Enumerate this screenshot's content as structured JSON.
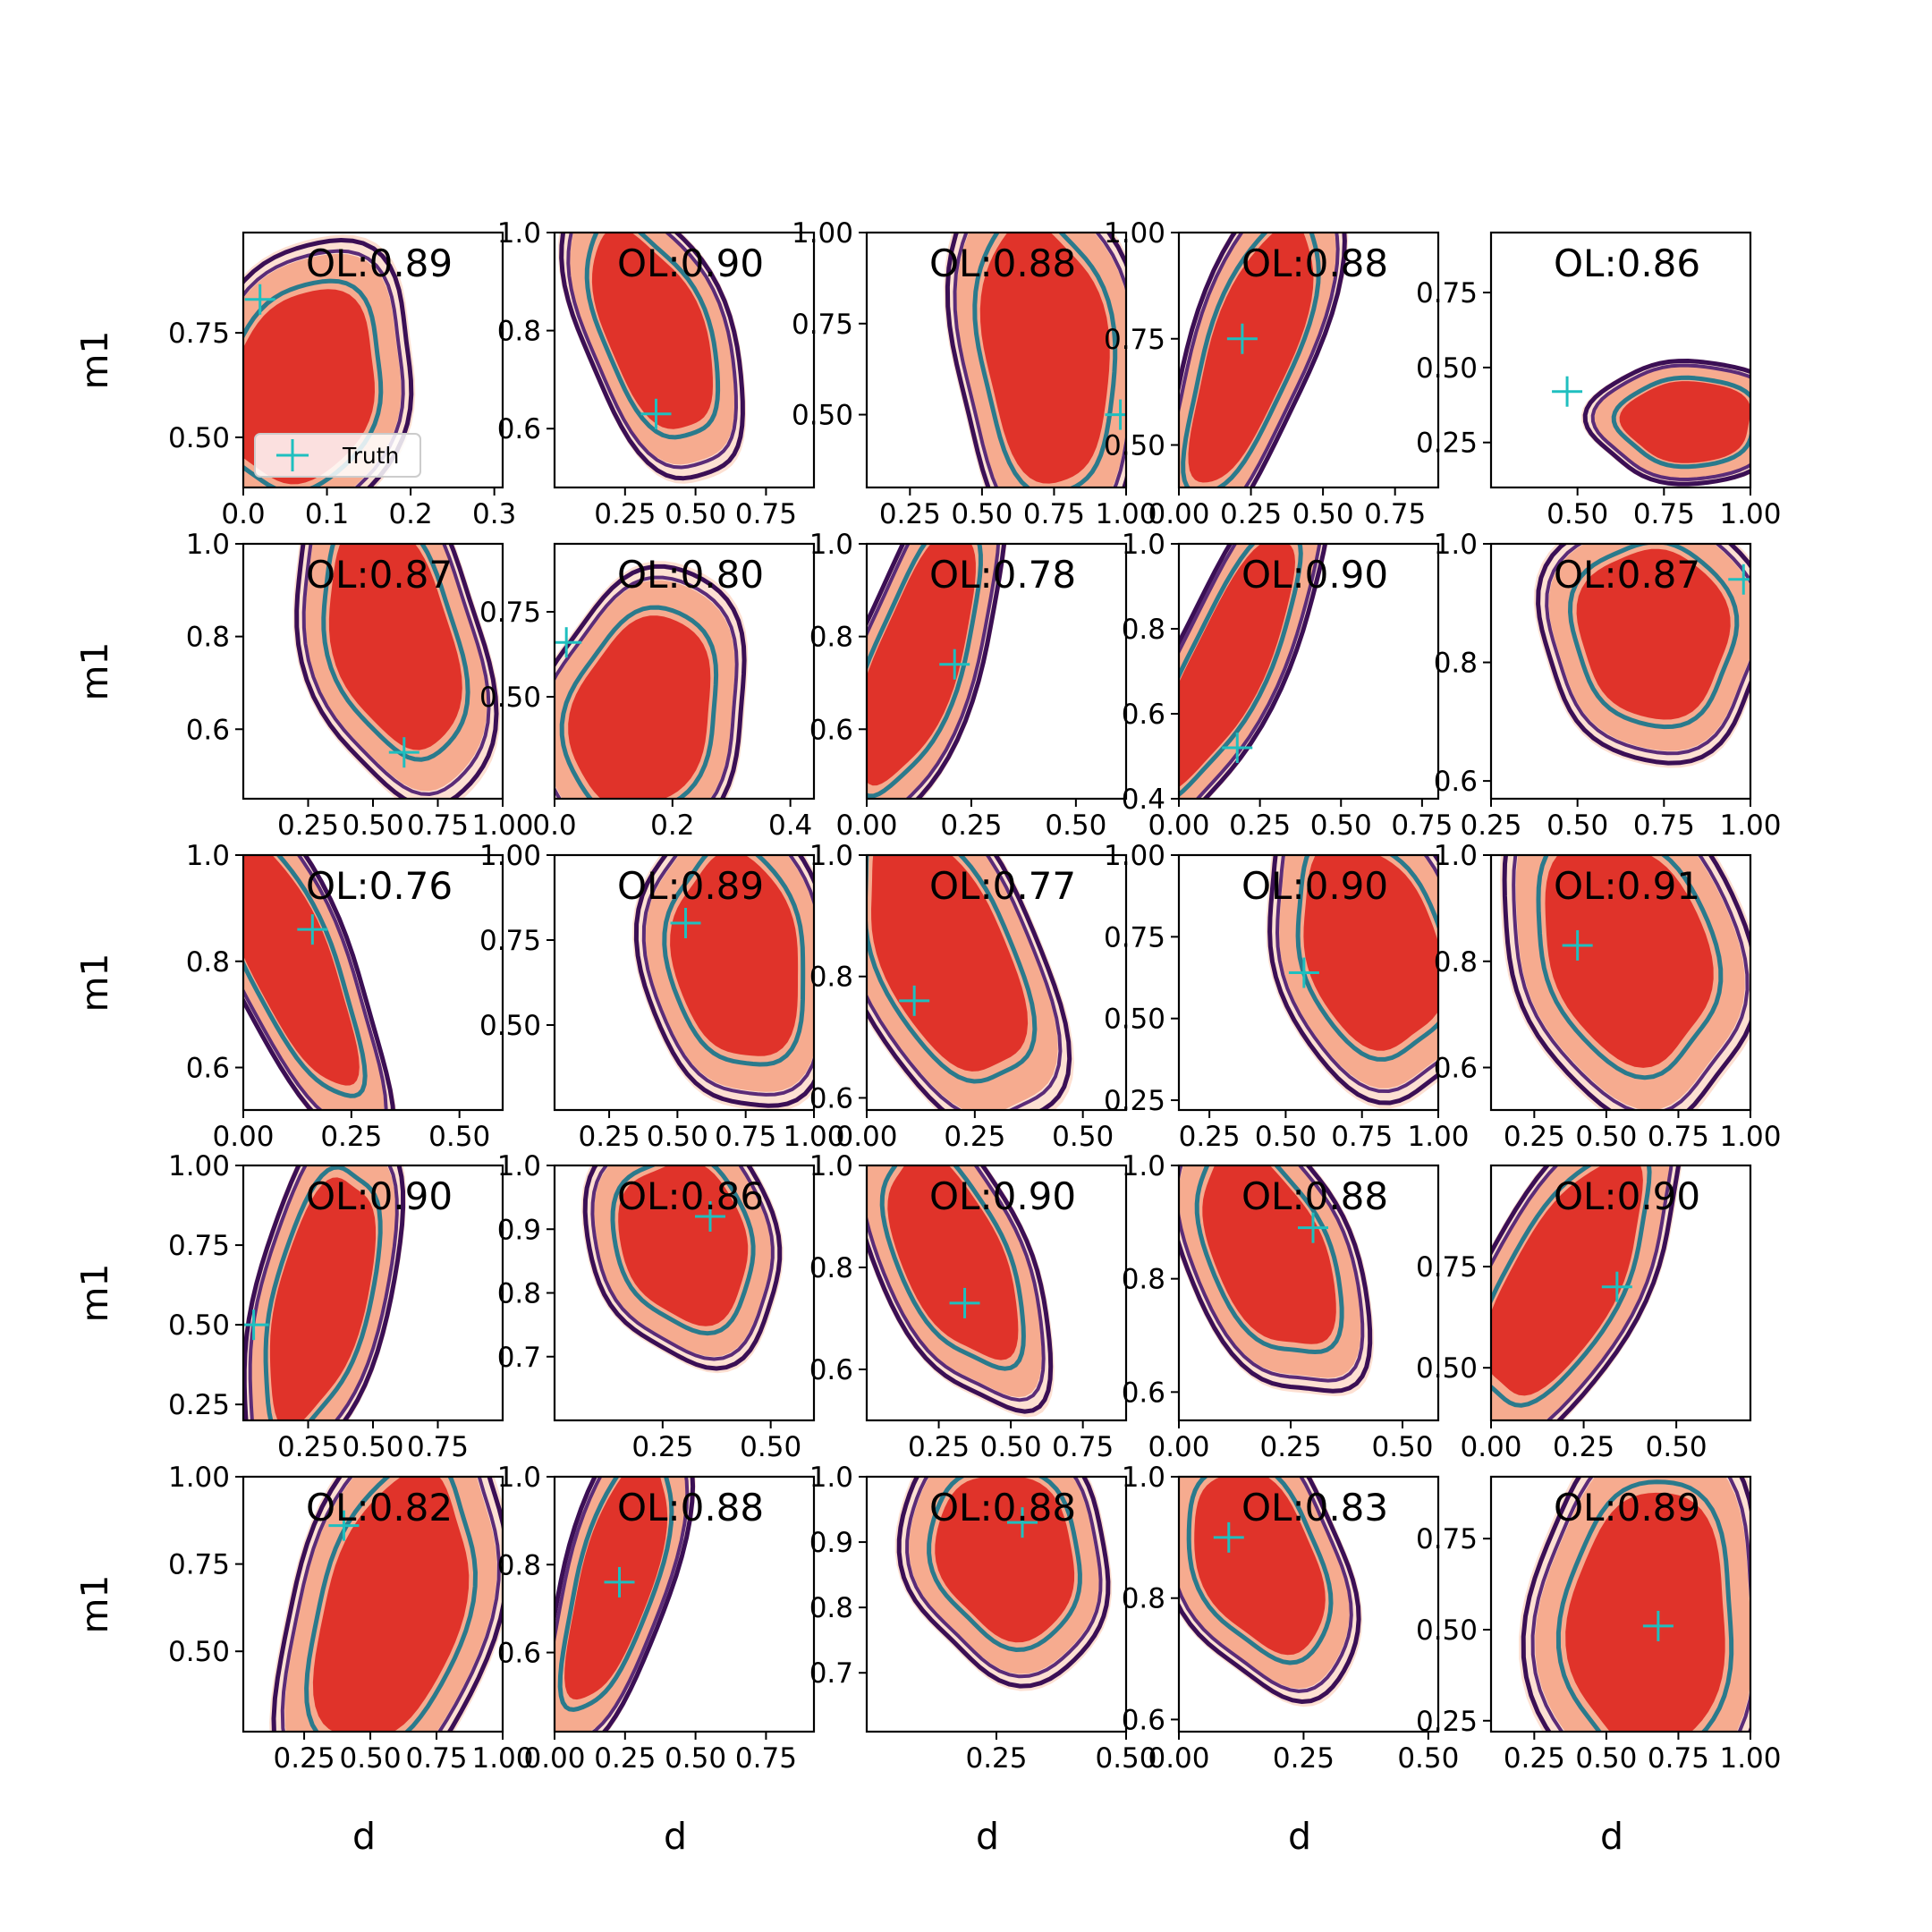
{
  "figure": {
    "ylabel": "m1",
    "xlabel": "d",
    "legend_label": "Truth"
  },
  "colors": {
    "fill_outer": "#fde0d2",
    "fill_mid": "#f6ab8f",
    "fill_inner": "#e0332a",
    "contour_outer": "#3b0f55",
    "contour_mid": "#5b2c78",
    "contour_inner": "#2a7a8c",
    "truth": "#1fbfbf"
  },
  "chart_data": [
    {
      "type": "contour",
      "title": "OL:0.89",
      "xlim": [
        0,
        0.31
      ],
      "ylim": [
        0.38,
        0.99
      ],
      "xticks": [
        "0.0",
        "0.1",
        "0.2",
        "0.3"
      ],
      "xtickvals": [
        0,
        0.1,
        0.2,
        0.3
      ],
      "yticks": [
        "0.50",
        "0.75"
      ],
      "ytickvals": [
        0.5,
        0.75
      ],
      "cx": 0.07,
      "cy": 0.62,
      "sx": 0.12,
      "sy": 0.33,
      "skew": -0.45,
      "truth": [
        0.02,
        0.83
      ],
      "legend": true
    },
    {
      "type": "contour",
      "title": "OL:0.90",
      "xlim": [
        0,
        0.92
      ],
      "ylim": [
        0.48,
        1.0
      ],
      "xticks": [
        "0.25",
        "0.50",
        "0.75"
      ],
      "xtickvals": [
        0.25,
        0.5,
        0.75
      ],
      "yticks": [
        "0.6",
        "0.8",
        "1.0"
      ],
      "ytickvals": [
        0.6,
        0.8,
        1.0
      ],
      "cx": 0.35,
      "cy": 0.8,
      "sx": 0.24,
      "sy": 0.3,
      "skew": 0.35,
      "truth": [
        0.36,
        0.63
      ]
    },
    {
      "type": "contour",
      "title": "OL:0.88",
      "xlim": [
        0.1,
        1.0
      ],
      "ylim": [
        0.3,
        1.0
      ],
      "xticks": [
        "0.25",
        "0.50",
        "0.75",
        "1.00"
      ],
      "xtickvals": [
        0.25,
        0.5,
        0.75,
        1.0
      ],
      "yticks": [
        "0.50",
        "0.75",
        "1.00"
      ],
      "ytickvals": [
        0.5,
        0.75,
        1.0
      ],
      "cx": 0.72,
      "cy": 0.67,
      "sx": 0.3,
      "sy": 0.5,
      "skew": 0.1,
      "truth": [
        0.98,
        0.5
      ]
    },
    {
      "type": "contour",
      "title": "OL:0.88",
      "xlim": [
        0,
        0.9
      ],
      "ylim": [
        0.4,
        1.0
      ],
      "xticks": [
        "0.00",
        "0.25",
        "0.50",
        "0.75"
      ],
      "xtickvals": [
        0,
        0.25,
        0.5,
        0.75
      ],
      "yticks": [
        "0.50",
        "0.75",
        "1.00"
      ],
      "ytickvals": [
        0.5,
        0.75,
        1.0
      ],
      "cx": 0.25,
      "cy": 0.72,
      "sx": 0.2,
      "sy": 0.45,
      "skew": -0.2,
      "truth": [
        0.22,
        0.75
      ]
    },
    {
      "type": "contour",
      "title": "OL:0.86",
      "xlim": [
        0.25,
        1.0
      ],
      "ylim": [
        0.1,
        0.95
      ],
      "xticks": [
        "0.50",
        "0.75",
        "1.00"
      ],
      "xtickvals": [
        0.5,
        0.75,
        1.0
      ],
      "yticks": [
        "0.25",
        "0.50",
        "0.75"
      ],
      "ytickvals": [
        0.25,
        0.5,
        0.75
      ],
      "cx": 0.82,
      "cy": 0.32,
      "sx": 0.26,
      "sy": 0.19,
      "skew": 0.0,
      "truth": [
        0.47,
        0.42
      ]
    },
    {
      "type": "contour",
      "title": "OL:0.87",
      "xlim": [
        0.0,
        1.0
      ],
      "ylim": [
        0.45,
        1.0
      ],
      "xticks": [
        "0.25",
        "0.50",
        "0.75",
        "1.00"
      ],
      "xtickvals": [
        0.25,
        0.5,
        0.75,
        1.0
      ],
      "yticks": [
        "0.6",
        "0.8",
        "1.0"
      ],
      "ytickvals": [
        0.6,
        0.8,
        1.0
      ],
      "cx": 0.58,
      "cy": 0.8,
      "sx": 0.32,
      "sy": 0.35,
      "skew": 0.25,
      "truth": [
        0.62,
        0.55
      ]
    },
    {
      "type": "contour",
      "title": "OL:0.80",
      "xlim": [
        0,
        0.44
      ],
      "ylim": [
        0.2,
        0.95
      ],
      "xticks": [
        "0.0",
        "0.2",
        "0.4"
      ],
      "xtickvals": [
        0,
        0.2,
        0.4
      ],
      "yticks": [
        "0.50",
        "0.75"
      ],
      "ytickvals": [
        0.5,
        0.75
      ],
      "cx": 0.15,
      "cy": 0.45,
      "sx": 0.16,
      "sy": 0.4,
      "skew": -0.35,
      "truth": [
        0.02,
        0.66
      ]
    },
    {
      "type": "contour",
      "title": "OL:0.78",
      "xlim": [
        0,
        0.62
      ],
      "ylim": [
        0.45,
        1.0
      ],
      "xticks": [
        "0.00",
        "0.25",
        "0.50"
      ],
      "xtickvals": [
        0,
        0.25,
        0.5
      ],
      "yticks": [
        "0.6",
        "0.8",
        "1.0"
      ],
      "ytickvals": [
        0.6,
        0.8,
        1.0
      ],
      "cx": 0.12,
      "cy": 0.75,
      "sx": 0.14,
      "sy": 0.4,
      "skew": -0.2,
      "truth": [
        0.21,
        0.74
      ]
    },
    {
      "type": "contour",
      "title": "OL:0.90",
      "xlim": [
        0,
        0.8
      ],
      "ylim": [
        0.4,
        1.0
      ],
      "xticks": [
        "0.00",
        "0.25",
        "0.50",
        "0.75"
      ],
      "xtickvals": [
        0,
        0.25,
        0.5,
        0.75
      ],
      "yticks": [
        "0.4",
        "0.6",
        "0.8",
        "1.0"
      ],
      "ytickvals": [
        0.4,
        0.6,
        0.8,
        1.0
      ],
      "cx": 0.15,
      "cy": 0.72,
      "sx": 0.16,
      "sy": 0.45,
      "skew": -0.25,
      "truth": [
        0.18,
        0.52
      ]
    },
    {
      "type": "contour",
      "title": "OL:0.87",
      "xlim": [
        0.25,
        1.0
      ],
      "ylim": [
        0.57,
        1.0
      ],
      "xticks": [
        "0.25",
        "0.50",
        "0.75",
        "1.00"
      ],
      "xtickvals": [
        0.25,
        0.5,
        0.75,
        1.0
      ],
      "yticks": [
        "0.6",
        "0.8",
        "1.0"
      ],
      "ytickvals": [
        0.6,
        0.8,
        1.0
      ],
      "cx": 0.72,
      "cy": 0.85,
      "sx": 0.3,
      "sy": 0.2,
      "skew": 0.3,
      "truth": [
        0.98,
        0.94
      ]
    },
    {
      "type": "contour",
      "title": "OL:0.76",
      "xlim": [
        0,
        0.6
      ],
      "ylim": [
        0.52,
        1.0
      ],
      "xticks": [
        "0.00",
        "0.25",
        "0.50"
      ],
      "xtickvals": [
        0,
        0.25,
        0.5
      ],
      "yticks": [
        "0.6",
        "0.8",
        "1.0"
      ],
      "ytickvals": [
        0.6,
        0.8,
        1.0
      ],
      "cx": 0.11,
      "cy": 0.8,
      "sx": 0.13,
      "sy": 0.35,
      "skew": 0.25,
      "truth": [
        0.16,
        0.86
      ]
    },
    {
      "type": "contour",
      "title": "OL:0.89",
      "xlim": [
        0.05,
        1.0
      ],
      "ylim": [
        0.25,
        1.0
      ],
      "xticks": [
        "0.25",
        "0.50",
        "0.75",
        "1.00"
      ],
      "xtickvals": [
        0.25,
        0.5,
        0.75,
        1.0
      ],
      "yticks": [
        "0.50",
        "0.75",
        "1.00"
      ],
      "ytickvals": [
        0.5,
        0.75,
        1.0
      ],
      "cx": 0.72,
      "cy": 0.7,
      "sx": 0.32,
      "sy": 0.42,
      "skew": 0.15,
      "truth": [
        0.53,
        0.8
      ]
    },
    {
      "type": "contour",
      "title": "OL:0.77",
      "xlim": [
        0,
        0.6
      ],
      "ylim": [
        0.58,
        1.0
      ],
      "xticks": [
        "0.00",
        "0.25",
        "0.50"
      ],
      "xtickvals": [
        0,
        0.25,
        0.5
      ],
      "yticks": [
        "0.6",
        "0.8",
        "1.0"
      ],
      "ytickvals": [
        0.6,
        0.8,
        1.0
      ],
      "cx": 0.18,
      "cy": 0.84,
      "sx": 0.2,
      "sy": 0.3,
      "skew": 0.4,
      "truth": [
        0.11,
        0.76
      ]
    },
    {
      "type": "contour",
      "title": "OL:0.90",
      "xlim": [
        0.15,
        1.0
      ],
      "ylim": [
        0.22,
        1.0
      ],
      "xticks": [
        "0.25",
        "0.50",
        "0.75",
        "1.00"
      ],
      "xtickvals": [
        0.25,
        0.5,
        0.75,
        1.0
      ],
      "yticks": [
        "0.25",
        "0.50",
        "0.75",
        "1.00"
      ],
      "ytickvals": [
        0.25,
        0.5,
        0.75,
        1.0
      ],
      "cx": 0.78,
      "cy": 0.72,
      "sx": 0.3,
      "sy": 0.45,
      "skew": 0.35,
      "truth": [
        0.56,
        0.64
      ]
    },
    {
      "type": "contour",
      "title": "OL:0.91",
      "xlim": [
        0.1,
        1.0
      ],
      "ylim": [
        0.52,
        1.0
      ],
      "xticks": [
        "0.25",
        "0.50",
        "0.75",
        "1.00"
      ],
      "xtickvals": [
        0.25,
        0.5,
        0.75,
        1.0
      ],
      "yticks": [
        "0.6",
        "0.8",
        "1.0"
      ],
      "ytickvals": [
        0.6,
        0.8,
        1.0
      ],
      "cx": 0.57,
      "cy": 0.82,
      "sx": 0.38,
      "sy": 0.3,
      "skew": 0.45,
      "truth": [
        0.4,
        0.83
      ]
    },
    {
      "type": "contour",
      "title": "OL:0.90",
      "xlim": [
        0,
        1.0
      ],
      "ylim": [
        0.2,
        1.0
      ],
      "xticks": [
        "0.25",
        "0.50",
        "0.75"
      ],
      "xtickvals": [
        0.25,
        0.5,
        0.75
      ],
      "yticks": [
        "0.25",
        "0.50",
        "0.75",
        "1.00"
      ],
      "ytickvals": [
        0.25,
        0.5,
        0.75,
        1.0
      ],
      "cx": 0.3,
      "cy": 0.58,
      "sx": 0.24,
      "sy": 0.55,
      "skew": -0.15,
      "truth": [
        0.04,
        0.5
      ]
    },
    {
      "type": "contour",
      "title": "OL:0.86",
      "xlim": [
        0,
        0.6
      ],
      "ylim": [
        0.6,
        1.0
      ],
      "xticks": [
        "0.25",
        "0.50"
      ],
      "xtickvals": [
        0.25,
        0.5
      ],
      "yticks": [
        "0.7",
        "0.8",
        "0.9",
        "1.0"
      ],
      "ytickvals": [
        0.7,
        0.8,
        0.9,
        1.0
      ],
      "cx": 0.3,
      "cy": 0.88,
      "sx": 0.2,
      "sy": 0.18,
      "skew": 0.45,
      "truth": [
        0.36,
        0.92
      ]
    },
    {
      "type": "contour",
      "title": "OL:0.90",
      "xlim": [
        0,
        0.9
      ],
      "ylim": [
        0.5,
        1.0
      ],
      "xticks": [
        "0.25",
        "0.50",
        "0.75"
      ],
      "xtickvals": [
        0.25,
        0.5,
        0.75
      ],
      "yticks": [
        "0.6",
        "0.8",
        "1.0"
      ],
      "ytickvals": [
        0.6,
        0.8,
        1.0
      ],
      "cx": 0.3,
      "cy": 0.82,
      "sx": 0.24,
      "sy": 0.3,
      "skew": 0.4,
      "truth": [
        0.34,
        0.73
      ]
    },
    {
      "type": "contour",
      "title": "OL:0.88",
      "xlim": [
        0,
        0.58
      ],
      "ylim": [
        0.55,
        1.0
      ],
      "xticks": [
        "0.00",
        "0.25",
        "0.50"
      ],
      "xtickvals": [
        0,
        0.25,
        0.5
      ],
      "yticks": [
        "0.6",
        "0.8",
        "1.0"
      ],
      "ytickvals": [
        0.6,
        0.8,
        1.0
      ],
      "cx": 0.2,
      "cy": 0.85,
      "sx": 0.17,
      "sy": 0.26,
      "skew": 0.45,
      "truth": [
        0.3,
        0.89
      ]
    },
    {
      "type": "contour",
      "title": "OL:0.90",
      "xlim": [
        0,
        0.7
      ],
      "ylim": [
        0.37,
        1.0
      ],
      "xticks": [
        "0.00",
        "0.25",
        "0.50"
      ],
      "xtickvals": [
        0,
        0.25,
        0.5
      ],
      "yticks": [
        "0.50",
        "0.75"
      ],
      "ytickvals": [
        0.5,
        0.75
      ],
      "cx": 0.2,
      "cy": 0.72,
      "sx": 0.2,
      "sy": 0.45,
      "skew": -0.45,
      "truth": [
        0.34,
        0.7
      ]
    },
    {
      "type": "contour",
      "title": "OL:0.82",
      "xlim": [
        0.02,
        1.0
      ],
      "ylim": [
        0.27,
        1.0
      ],
      "xticks": [
        "0.25",
        "0.50",
        "0.75",
        "1.00"
      ],
      "xtickvals": [
        0.25,
        0.5,
        0.75,
        1.0
      ],
      "yticks": [
        "0.50",
        "0.75",
        "1.00"
      ],
      "ytickvals": [
        0.5,
        0.75,
        1.0
      ],
      "cx": 0.58,
      "cy": 0.62,
      "sx": 0.36,
      "sy": 0.55,
      "skew": -0.25,
      "truth": [
        0.4,
        0.86
      ]
    },
    {
      "type": "contour",
      "title": "OL:0.88",
      "xlim": [
        0,
        0.92
      ],
      "ylim": [
        0.42,
        1.0
      ],
      "xticks": [
        "0.00",
        "0.25",
        "0.50",
        "0.75"
      ],
      "xtickvals": [
        0,
        0.25,
        0.5,
        0.75
      ],
      "yticks": [
        "0.6",
        "0.8",
        "1.0"
      ],
      "ytickvals": [
        0.6,
        0.8,
        1.0
      ],
      "cx": 0.22,
      "cy": 0.77,
      "sx": 0.18,
      "sy": 0.4,
      "skew": -0.15,
      "truth": [
        0.23,
        0.76
      ]
    },
    {
      "type": "contour",
      "title": "OL:0.88",
      "xlim": [
        0,
        0.5
      ],
      "ylim": [
        0.61,
        1.0
      ],
      "xticks": [
        "0.25",
        "0.50"
      ],
      "xtickvals": [
        0.25,
        0.5
      ],
      "yticks": [
        "0.7",
        "0.8",
        "0.9",
        "1.0"
      ],
      "ytickvals": [
        0.7,
        0.8,
        0.9,
        1.0
      ],
      "cx": 0.27,
      "cy": 0.88,
      "sx": 0.18,
      "sy": 0.18,
      "skew": 0.5,
      "truth": [
        0.3,
        0.93
      ]
    },
    {
      "type": "contour",
      "title": "OL:0.83",
      "xlim": [
        0,
        0.52
      ],
      "ylim": [
        0.58,
        1.0
      ],
      "xticks": [
        "0.00",
        "0.25",
        "0.50"
      ],
      "xtickvals": [
        0,
        0.25,
        0.5
      ],
      "yticks": [
        "0.6",
        "0.8",
        "1.0"
      ],
      "ytickvals": [
        0.6,
        0.8,
        1.0
      ],
      "cx": 0.16,
      "cy": 0.86,
      "sx": 0.16,
      "sy": 0.22,
      "skew": 0.5,
      "truth": [
        0.1,
        0.9
      ]
    },
    {
      "type": "contour",
      "title": "OL:0.89",
      "xlim": [
        0.1,
        1.0
      ],
      "ylim": [
        0.22,
        0.92
      ],
      "xticks": [
        "0.25",
        "0.50",
        "0.75",
        "1.00"
      ],
      "xtickvals": [
        0.25,
        0.5,
        0.75,
        1.0
      ],
      "yticks": [
        "0.25",
        "0.50",
        "0.75"
      ],
      "ytickvals": [
        0.25,
        0.5,
        0.75
      ],
      "cx": 0.65,
      "cy": 0.52,
      "sx": 0.38,
      "sy": 0.5,
      "skew": -0.05,
      "truth": [
        0.68,
        0.51
      ]
    }
  ]
}
